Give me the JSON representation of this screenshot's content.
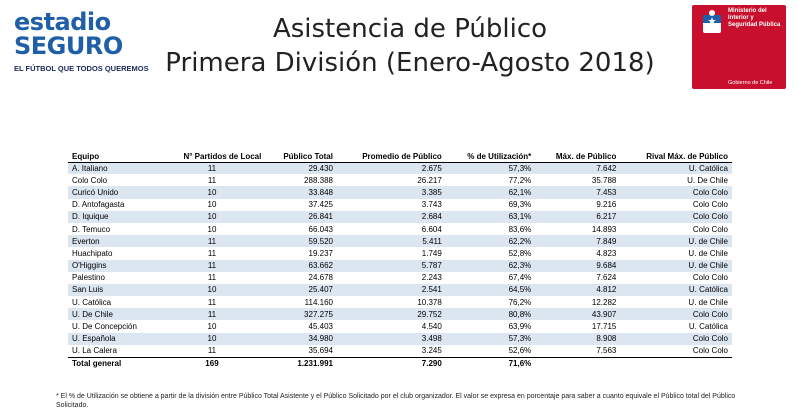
{
  "logo": {
    "line1": "estadio",
    "line2": "SEGURO",
    "tagline": "EL FÚTBOL QUE TODOS QUEREMOS"
  },
  "title": {
    "line1": "Asistencia de Público",
    "line2": "Primera División (Enero-Agosto 2018)"
  },
  "ministry": {
    "text": "Ministerio del Interior y Seguridad Pública",
    "government": "Gobierno de Chile"
  },
  "table": {
    "headers": [
      "Equipo",
      "N° Partidos de Local",
      "Público Total",
      "Promedio de Público",
      "% de Utilización*",
      "Máx. de Público",
      "Rival Máx. de Público"
    ],
    "rows": [
      [
        "A. Italiano",
        "11",
        "29.430",
        "2.675",
        "57,3%",
        "7.642",
        "U. Católica"
      ],
      [
        "Colo Colo",
        "11",
        "288.388",
        "26.217",
        "77,2%",
        "35.788",
        "U. De Chile"
      ],
      [
        "Curicó Unido",
        "10",
        "33.848",
        "3.385",
        "62,1%",
        "7.453",
        "Colo Colo"
      ],
      [
        "D. Antofagasta",
        "10",
        "37.425",
        "3.743",
        "69,3%",
        "9.216",
        "Colo Colo"
      ],
      [
        "D. Iquique",
        "10",
        "26.841",
        "2.684",
        "63,1%",
        "6.217",
        "Colo Colo"
      ],
      [
        "D. Temuco",
        "10",
        "66.043",
        "6.604",
        "83,6%",
        "14.893",
        "Colo Colo"
      ],
      [
        "Everton",
        "11",
        "59.520",
        "5.411",
        "62,2%",
        "7.849",
        "U. de Chile"
      ],
      [
        "Huachipato",
        "11",
        "19.237",
        "1.749",
        "52,8%",
        "4.823",
        "U. de Chile"
      ],
      [
        "O'Higgins",
        "11",
        "63.662",
        "5.787",
        "62,3%",
        "9.684",
        "U. de Chile"
      ],
      [
        "Palestino",
        "11",
        "24.678",
        "2.243",
        "67,4%",
        "7.624",
        "Colo Colo"
      ],
      [
        "San Luis",
        "10",
        "25.407",
        "2.541",
        "64,5%",
        "4.812",
        "U. Católica"
      ],
      [
        "U. Católica",
        "11",
        "114.160",
        "10.378",
        "76,2%",
        "12.282",
        "U. de Chile"
      ],
      [
        "U. De Chile",
        "11",
        "327.275",
        "29.752",
        "80,8%",
        "43.907",
        "Colo Colo"
      ],
      [
        "U. De Concepción",
        "10",
        "45.403",
        "4.540",
        "63,9%",
        "17.715",
        "U. Católica"
      ],
      [
        "U. Española",
        "10",
        "34.980",
        "3.498",
        "57,3%",
        "8.908",
        "Colo Colo"
      ],
      [
        "U. La Calera",
        "11",
        "35.694",
        "3.245",
        "52,6%",
        "7.563",
        "Colo Colo"
      ]
    ],
    "total": [
      "Total general",
      "169",
      "1.231.991",
      "7.290",
      "71,6%",
      "",
      ""
    ]
  },
  "footnote": "* El % de Utilización se obtiene a partir de la división entre Público Total Asistente y el Público Solicitado por el club organizador. El valor se expresa en porcentaje para saber a cuanto equivale el Público total del Público Solicitado."
}
